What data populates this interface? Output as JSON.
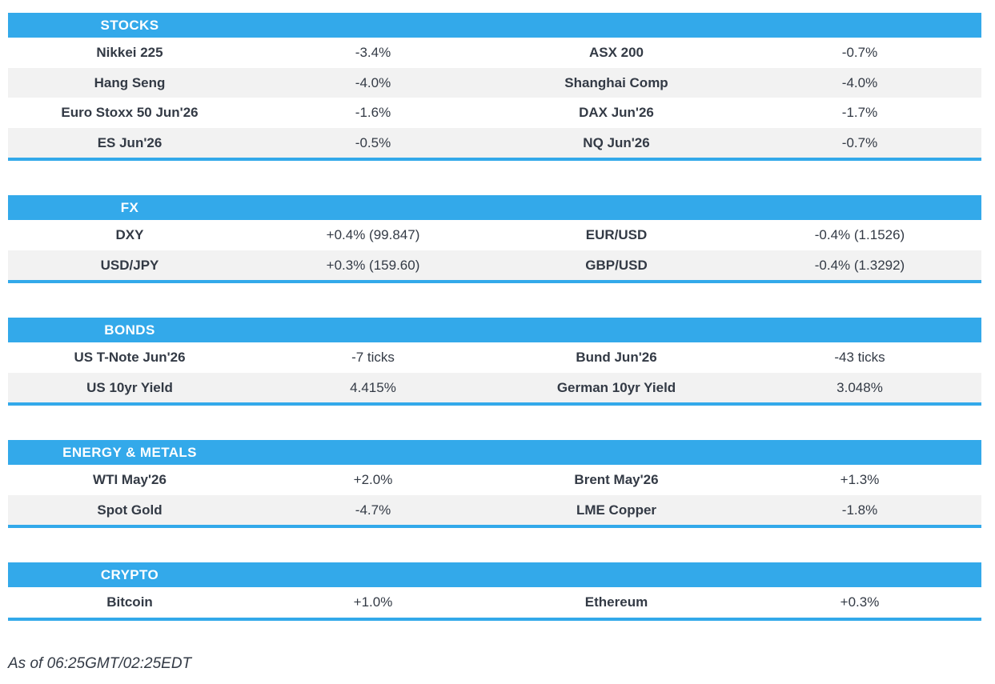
{
  "colors": {
    "accent": "#33A9EA",
    "alt_row": "#F2F2F2",
    "text": "#333A45",
    "header_text": "#FFFFFF"
  },
  "sections": [
    {
      "title": "STOCKS",
      "rows": [
        [
          "Nikkei 225",
          "-3.4%",
          "ASX 200",
          "-0.7%"
        ],
        [
          "Hang Seng",
          "-4.0%",
          "Shanghai Comp",
          "-4.0%"
        ],
        [
          "Euro Stoxx 50 Jun'26",
          "-1.6%",
          "DAX Jun'26",
          "-1.7%"
        ],
        [
          "ES Jun'26",
          "-0.5%",
          "NQ Jun'26",
          "-0.7%"
        ]
      ]
    },
    {
      "title": "FX",
      "rows": [
        [
          "DXY",
          "+0.4% (99.847)",
          "EUR/USD",
          "-0.4% (1.1526)"
        ],
        [
          "USD/JPY",
          "+0.3% (159.60)",
          "GBP/USD",
          "-0.4% (1.3292)"
        ]
      ]
    },
    {
      "title": "BONDS",
      "rows": [
        [
          "US T-Note Jun'26",
          "-7 ticks",
          "Bund Jun'26",
          "-43 ticks"
        ],
        [
          "US 10yr Yield",
          "4.415%",
          "German 10yr Yield",
          "3.048%"
        ]
      ]
    },
    {
      "title": "ENERGY & METALS",
      "rows": [
        [
          "WTI May'26",
          "+2.0%",
          "Brent May'26",
          "+1.3%"
        ],
        [
          "Spot Gold",
          "-4.7%",
          "LME Copper",
          "-1.8%"
        ]
      ]
    },
    {
      "title": "CRYPTO",
      "rows": [
        [
          "Bitcoin",
          "+1.0%",
          "Ethereum",
          "+0.3%"
        ]
      ]
    }
  ],
  "footer": {
    "as_of": "As of 06:25GMT/02:25EDT"
  }
}
